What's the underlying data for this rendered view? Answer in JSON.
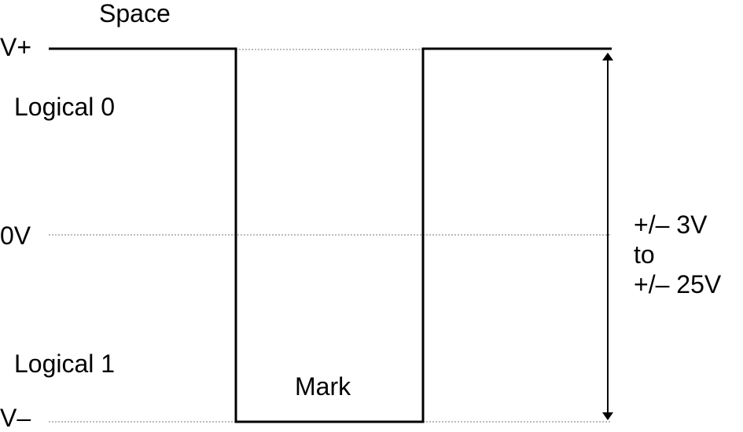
{
  "labels": {
    "space": "Space",
    "v_plus": "V+",
    "logical_0": "Logical 0",
    "zero_v": "0V",
    "logical_1": "Logical 1",
    "mark": "Mark",
    "v_minus": "V–"
  },
  "range": {
    "line1": "+/– 3V",
    "line2": "to",
    "line3": "+/– 25V"
  },
  "colors": {
    "signal": "#000000",
    "reference": "#777777"
  }
}
